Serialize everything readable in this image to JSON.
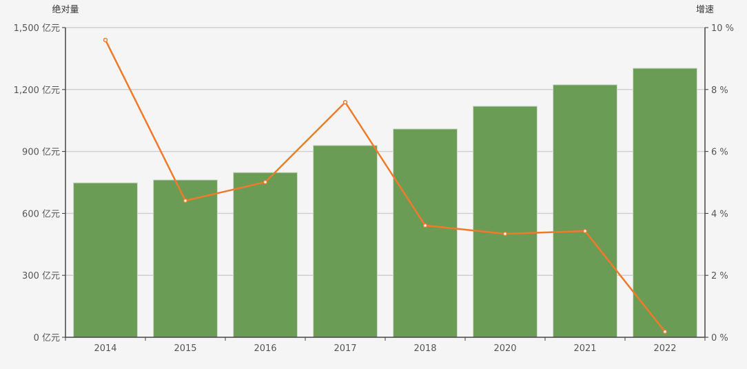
{
  "chart_data": {
    "type": "bar+line",
    "categories": [
      "2014",
      "2015",
      "2016",
      "2017",
      "2018",
      "2020",
      "2021",
      "2022"
    ],
    "series": [
      {
        "name": "绝对量",
        "type": "bar",
        "axis": "left",
        "unit": "亿元",
        "color": "#6a9c55",
        "values": [
          748,
          762,
          798,
          929,
          1009,
          1119,
          1223,
          1303
        ]
      },
      {
        "name": "增速",
        "type": "line",
        "axis": "right",
        "unit": "%",
        "color": "#f07a2a",
        "values": [
          9.6,
          4.41,
          5.01,
          7.59,
          3.61,
          3.34,
          3.43,
          0.18
        ]
      }
    ],
    "title": "",
    "ylabel_left": "绝对量",
    "ylabel_right": "增速",
    "ylim_left": [
      0,
      1500
    ],
    "ylim_right": [
      0,
      10
    ],
    "yticks_left": [
      "0 亿元",
      "300 亿元",
      "600 亿元",
      "900 亿元",
      "1,200 亿元",
      "1,500 亿元"
    ],
    "yticks_right": [
      "0 %",
      "2 %",
      "4 %",
      "6 %",
      "8 %",
      "10 %"
    ],
    "grid": true,
    "legend": "none"
  }
}
